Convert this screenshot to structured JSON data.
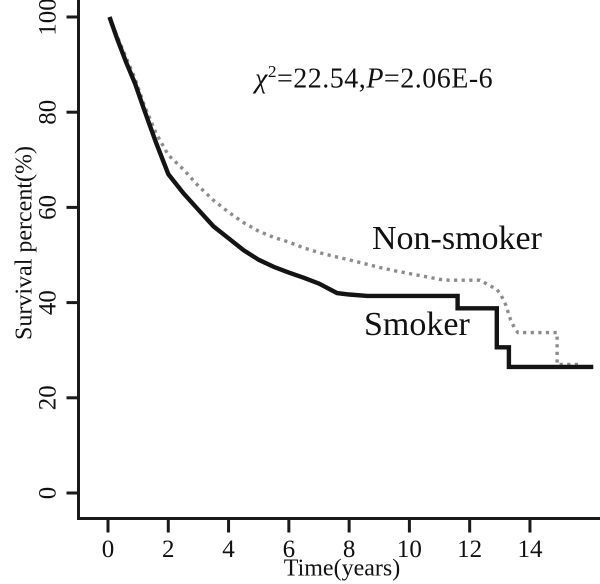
{
  "figure": {
    "background": "#ffffff",
    "annotation": {
      "chi_symbol": "χ",
      "superscript": "2",
      "segment_mid": "=22.54,",
      "p_symbol": "P",
      "segment_end": "=2.06E-6"
    },
    "axis_color": "#1a1a1a"
  },
  "chart_data": {
    "type": "line",
    "subtype": "kaplan-meier-survival",
    "title": "",
    "xlabel": "Time(years)",
    "ylabel": "Survival percent(%)",
    "xlim": [
      0,
      16.3
    ],
    "ylim": [
      0,
      104
    ],
    "x_ticks": [
      0,
      2,
      4,
      6,
      8,
      10,
      12,
      14
    ],
    "y_ticks": [
      0,
      20,
      40,
      60,
      80,
      100
    ],
    "grid": false,
    "legend_position": "inline-labels",
    "annotation_text": "χ2=22.54,P=2.06E-6",
    "series": [
      {
        "name": "Non-smoker",
        "style": "dotted",
        "color": "#8c8c8c",
        "points": [
          [
            0.05,
            100
          ],
          [
            0.3,
            96
          ],
          [
            0.6,
            91.5
          ],
          [
            0.9,
            87
          ],
          [
            1.2,
            81.5
          ],
          [
            1.6,
            75.5
          ],
          [
            2.0,
            71
          ],
          [
            2.5,
            68
          ],
          [
            3.0,
            64.5
          ],
          [
            3.5,
            61.5
          ],
          [
            4.0,
            59
          ],
          [
            4.5,
            56.8
          ],
          [
            5.0,
            55
          ],
          [
            5.5,
            53.7
          ],
          [
            6.0,
            52.7
          ],
          [
            6.5,
            51.5
          ],
          [
            7.0,
            50.5
          ],
          [
            7.5,
            49.7
          ],
          [
            8.0,
            49
          ],
          [
            8.5,
            48.2
          ],
          [
            9.0,
            47.4
          ],
          [
            9.5,
            46.7
          ],
          [
            10.0,
            46.1
          ],
          [
            10.5,
            45.5
          ],
          [
            11.0,
            44.9
          ],
          [
            11.3,
            44.7
          ],
          [
            12.34,
            44.7
          ],
          [
            12.6,
            43.8
          ],
          [
            12.9,
            42.8
          ],
          [
            13.05,
            41.5
          ],
          [
            13.2,
            39.5
          ],
          [
            13.35,
            36.5
          ],
          [
            13.5,
            34.5
          ],
          [
            13.6,
            33.7
          ],
          [
            14.9,
            33.7
          ],
          [
            14.9,
            27
          ],
          [
            15.7,
            27
          ]
        ]
      },
      {
        "name": "Smoker",
        "style": "solid",
        "color": "#141414",
        "points": [
          [
            0.05,
            100
          ],
          [
            0.3,
            95.5
          ],
          [
            0.6,
            90.5
          ],
          [
            0.9,
            86
          ],
          [
            1.2,
            80.5
          ],
          [
            1.6,
            73.5
          ],
          [
            2.0,
            67
          ],
          [
            2.5,
            63
          ],
          [
            3.0,
            59.5
          ],
          [
            3.5,
            56
          ],
          [
            4.0,
            53.5
          ],
          [
            4.5,
            51
          ],
          [
            5.0,
            49
          ],
          [
            5.5,
            47.5
          ],
          [
            6.0,
            46.3
          ],
          [
            6.5,
            45.2
          ],
          [
            7.0,
            44
          ],
          [
            7.6,
            42
          ],
          [
            8.0,
            41.7
          ],
          [
            8.6,
            41.4
          ],
          [
            11.6,
            41.4
          ],
          [
            11.6,
            38.8
          ],
          [
            12.9,
            38.8
          ],
          [
            12.9,
            30.6
          ],
          [
            13.3,
            30.6
          ],
          [
            13.3,
            26.5
          ],
          [
            16.1,
            26.5
          ]
        ]
      }
    ]
  }
}
